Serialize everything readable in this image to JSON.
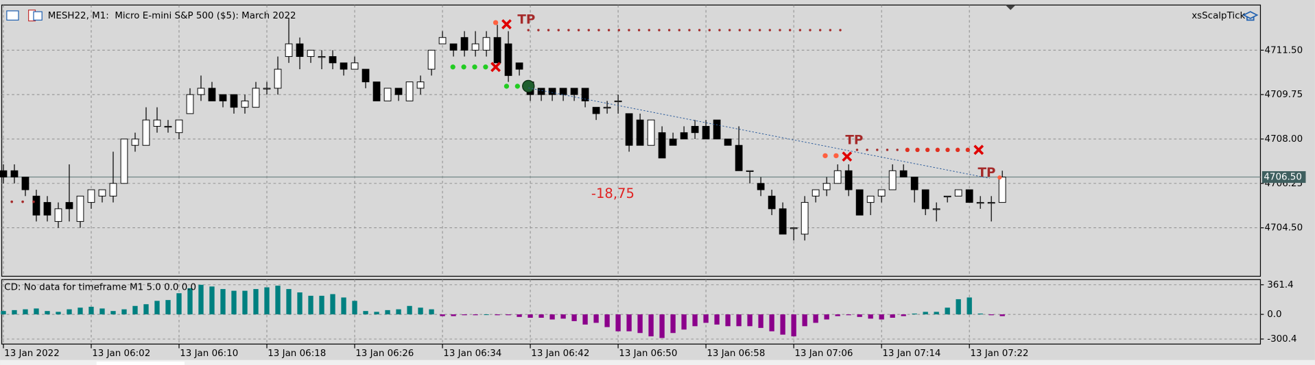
{
  "chart_data": [
    {
      "type": "candlestick",
      "title": "MESH22, M1:  Micro E-mini S&P 500 ($5): March 2022",
      "expert": "xsScalpTick",
      "categories": [
        "13 Jan 2022",
        null,
        null,
        null,
        null,
        null,
        null,
        null,
        "13 Jan 06:02",
        null,
        null,
        null,
        null,
        null,
        null,
        null,
        "13 Jan 06:10",
        null,
        null,
        null,
        null,
        null,
        null,
        null,
        "13 Jan 06:18",
        null,
        null,
        null,
        null,
        null,
        null,
        null,
        "13 Jan 06:26",
        null,
        null,
        null,
        null,
        null,
        null,
        null,
        "13 Jan 06:34",
        null,
        null,
        null,
        null,
        null,
        null,
        null,
        "13 Jan 06:42",
        null,
        null,
        null,
        null,
        null,
        null,
        null,
        "13 Jan 06:50",
        null,
        null,
        null,
        null,
        null,
        null,
        null,
        "13 Jan 06:58",
        null,
        null,
        null,
        null,
        null,
        null,
        null,
        "13 Jan 07:06",
        null,
        null,
        null,
        null,
        null,
        null,
        null,
        "13 Jan 07:14",
        null,
        null,
        null,
        null,
        null,
        null,
        null,
        "13 Jan 07:22",
        null,
        null,
        null
      ],
      "open": [
        4706.75,
        4706.75,
        4706.5,
        4705.75,
        4705.5,
        4704.75,
        4705.5,
        4704.75,
        4705.5,
        4705.75,
        4705.75,
        4706.25,
        4707.75,
        4707.75,
        4708.5,
        4708.5,
        4708.25,
        4709.0,
        4709.75,
        4710.0,
        4709.75,
        4709.75,
        4709.25,
        4709.25,
        4710.0,
        4710.0,
        4711.25,
        4711.75,
        4711.25,
        4711.25,
        4711.25,
        4711.0,
        4710.75,
        4710.75,
        4710.25,
        4709.5,
        4710.0,
        4709.5,
        4710.0,
        4710.75,
        4711.75,
        4711.75,
        4712.0,
        4711.5,
        4711.5,
        4712.0,
        4711.75,
        4711.0,
        4710.25,
        4710.0,
        4710.0,
        4710.0,
        4710.0,
        4710.0,
        4709.25,
        4709.25,
        4709.5,
        4709.0,
        4708.75,
        4707.75,
        4708.25,
        4708.0,
        4708.25,
        4708.5,
        4708.5,
        4708.75,
        4708.0,
        4707.75,
        4706.75,
        4706.25,
        4705.75,
        4705.25,
        4704.5,
        4704.25,
        4705.75,
        4706.0,
        4706.25,
        4706.75,
        4706.0,
        4705.5,
        4705.75,
        4706.0,
        4706.75,
        4706.5,
        4706.0,
        4705.25,
        4705.75,
        4705.75,
        4706.0,
        4705.5,
        4705.5,
        4705.5
      ],
      "high": [
        4707.0,
        4707.0,
        4706.5,
        4706.0,
        4705.75,
        4705.5,
        4707.0,
        4705.75,
        4706.0,
        4706.0,
        4707.5,
        4708.0,
        4708.25,
        4709.25,
        4709.25,
        4708.75,
        4708.75,
        4710.0,
        4710.5,
        4710.25,
        4709.75,
        4709.75,
        4709.75,
        4710.25,
        4710.25,
        4711.25,
        4712.75,
        4712.0,
        4711.5,
        4711.5,
        4711.5,
        4711.0,
        4711.25,
        4710.75,
        4710.25,
        4710.0,
        4710.0,
        4710.25,
        4710.5,
        4711.5,
        4712.25,
        4711.75,
        4712.25,
        4712.25,
        4712.25,
        4712.5,
        4712.25,
        4711.0,
        4710.25,
        4710.0,
        4710.0,
        4710.0,
        4710.0,
        4710.0,
        4709.25,
        4709.5,
        4709.75,
        4709.0,
        4709.0,
        4708.75,
        4708.5,
        4708.25,
        4708.5,
        4708.75,
        4708.75,
        4708.75,
        4708.0,
        4708.5,
        4706.75,
        4706.5,
        4706.0,
        4705.5,
        4704.5,
        4705.75,
        4706.0,
        4706.5,
        4707.0,
        4707.0,
        4706.0,
        4705.75,
        4706.0,
        4707.0,
        4707.0,
        4706.5,
        4706.0,
        4705.5,
        4705.75,
        4706.0,
        4706.0,
        4705.75,
        4705.75,
        4706.75
      ],
      "low": [
        4706.25,
        4706.25,
        4705.75,
        4704.75,
        4704.75,
        4704.5,
        4704.75,
        4704.5,
        4705.25,
        4705.5,
        4705.5,
        4706.25,
        4707.5,
        4707.75,
        4708.25,
        4708.25,
        4708.0,
        4709.0,
        4709.5,
        4709.5,
        4709.25,
        4709.0,
        4709.0,
        4709.25,
        4709.75,
        4709.75,
        4711.0,
        4710.75,
        4711.0,
        4710.75,
        4710.75,
        4710.5,
        4710.75,
        4710.0,
        4709.5,
        4709.5,
        4709.5,
        4709.5,
        4709.75,
        4710.5,
        4711.75,
        4711.25,
        4711.25,
        4711.25,
        4711.25,
        4711.0,
        4710.25,
        4710.5,
        4709.5,
        4709.5,
        4709.5,
        4709.5,
        4709.5,
        4709.25,
        4708.75,
        4709.0,
        4709.0,
        4707.5,
        4707.75,
        4707.75,
        4707.25,
        4707.75,
        4708.0,
        4708.0,
        4708.0,
        4708.0,
        4707.75,
        4706.75,
        4706.25,
        4705.75,
        4705.0,
        4704.25,
        4704.0,
        4704.0,
        4705.5,
        4705.75,
        4706.25,
        4705.75,
        4705.0,
        4705.0,
        4705.5,
        4706.0,
        4706.5,
        4705.5,
        4705.0,
        4704.75,
        4705.5,
        4705.75,
        4705.5,
        4705.25,
        4704.75,
        4705.5
      ],
      "close": [
        4706.5,
        4706.5,
        4706.0,
        4705.0,
        4705.0,
        4705.25,
        4705.25,
        4705.75,
        4706.0,
        4706.0,
        4706.25,
        4708.0,
        4708.0,
        4708.75,
        4708.75,
        4708.5,
        4708.75,
        4709.75,
        4710.0,
        4709.5,
        4709.5,
        4709.25,
        4709.5,
        4710.0,
        4710.0,
        4710.75,
        4711.75,
        4711.25,
        4711.5,
        4711.25,
        4711.0,
        4710.75,
        4711.0,
        4710.25,
        4709.5,
        4710.0,
        4709.75,
        4710.25,
        4710.25,
        4711.5,
        4712.0,
        4711.5,
        4711.5,
        4711.75,
        4712.0,
        4711.0,
        4710.5,
        4710.75,
        4709.75,
        4709.75,
        4709.75,
        4709.75,
        4709.75,
        4709.5,
        4709.0,
        4709.25,
        4709.5,
        4707.75,
        4707.75,
        4708.75,
        4707.25,
        4707.75,
        4708.0,
        4708.25,
        4708.0,
        4708.0,
        4707.75,
        4706.75,
        4706.75,
        4706.0,
        4705.25,
        4704.25,
        4704.5,
        4705.5,
        4706.0,
        4706.25,
        4706.75,
        4706.0,
        4705.0,
        4705.75,
        4706.0,
        4706.75,
        4706.5,
        4706.0,
        4705.25,
        4705.25,
        4705.75,
        4706.0,
        4705.5,
        4705.5,
        4705.5,
        4706.5
      ],
      "up_color": "#ffffff",
      "down_color": "#000000",
      "line_color": "#000000",
      "ylim": [
        4702.59,
        4713.28
      ],
      "yticks": [
        {
          "value": 4711.5,
          "label": "4711.50"
        },
        {
          "value": 4709.75,
          "label": "4709.75"
        },
        {
          "value": 4708.0,
          "label": "4708.00"
        },
        {
          "value": 4706.25,
          "label": "4706.25"
        },
        {
          "value": 4704.5,
          "label": "4704.50"
        }
      ],
      "last_price": {
        "value": 4706.5,
        "label": "4706.50"
      },
      "grid": true
    },
    {
      "type": "bar",
      "title": "CD: No data for timeframe M1 5.0 0.0 0.0",
      "values": [
        41,
        52,
        62,
        72,
        41,
        31,
        62,
        82,
        93,
        72,
        41,
        62,
        103,
        124,
        165,
        175,
        258,
        319,
        361,
        340,
        309,
        288,
        288,
        309,
        330,
        350,
        309,
        268,
        227,
        227,
        247,
        206,
        165,
        41,
        31,
        52,
        62,
        103,
        82,
        62,
        -21,
        -21,
        -10,
        -10,
        0,
        -10,
        -10,
        -31,
        -41,
        -41,
        -62,
        -52,
        -82,
        -124,
        -103,
        -155,
        -206,
        -206,
        -227,
        -268,
        -288,
        -227,
        -185,
        -144,
        -103,
        -124,
        -144,
        -144,
        -144,
        -165,
        -206,
        -247,
        -268,
        -144,
        -103,
        -62,
        -21,
        -10,
        -31,
        -52,
        -62,
        -41,
        -21,
        10,
        31,
        31,
        82,
        185,
        206,
        10,
        -10,
        -21
      ],
      "positive_color": "#008080",
      "negative_color": "#8b008b",
      "ylim": [
        -362,
        424
      ],
      "yticks": [
        {
          "value": 361.4,
          "label": "361.4"
        },
        {
          "value": 0,
          "label": "0.0"
        },
        {
          "value": -300.4,
          "label": "-300.4"
        }
      ],
      "grid": true
    }
  ],
  "annotations": [
    "TP",
    "TP",
    "TP",
    "-18,75"
  ]
}
